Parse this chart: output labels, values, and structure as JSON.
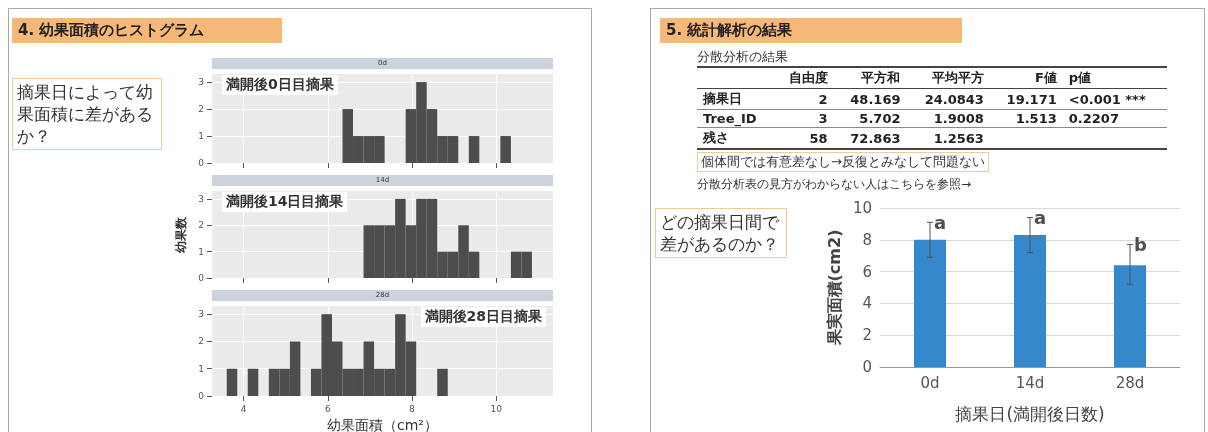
{
  "chart_data": [
    {
      "type": "histogram",
      "title": "4. 幼果面積のヒストグラム",
      "subtitle": "0d",
      "annotations": [
        "満開後0日目摘果",
        "摘果日によって幼果面積に差があるか？"
      ],
      "color": "#4d4d4d",
      "xlim": [
        3.25,
        11.35
      ],
      "xticks": [
        4,
        6,
        8,
        10
      ],
      "ylim": [
        0,
        3.3
      ],
      "yticks": [
        0,
        1,
        2,
        3
      ],
      "grid": true,
      "tick_labels": "y",
      "bins": [
        3.6,
        3.85,
        4.1,
        4.35,
        4.6,
        4.85,
        5.1,
        5.35,
        5.6,
        5.85,
        6.1,
        6.35,
        6.6,
        6.85,
        7.1,
        7.35,
        7.6,
        7.85,
        8.1,
        8.35,
        8.6,
        8.85,
        9.1,
        9.35,
        9.6,
        9.85,
        10.1,
        10.35,
        10.6,
        10.85
      ],
      "values": [
        0,
        0,
        0,
        0,
        0,
        0,
        0,
        0,
        0,
        0,
        0,
        2,
        1,
        1,
        1,
        0,
        0,
        2,
        3,
        2,
        1,
        1,
        0,
        1,
        0,
        0,
        1,
        0,
        0
      ]
    },
    {
      "type": "histogram",
      "subtitle": "14d",
      "ylabel": "幼果数",
      "annotations": [
        "満開後14日目摘果"
      ],
      "color": "#4d4d4d",
      "xlim": [
        3.25,
        11.35
      ],
      "xticks": [
        4,
        6,
        8,
        10
      ],
      "ylim": [
        0,
        3.3
      ],
      "yticks": [
        0,
        1,
        2,
        3
      ],
      "grid": true,
      "tick_labels": "y",
      "bins": [
        3.6,
        3.85,
        4.1,
        4.35,
        4.6,
        4.85,
        5.1,
        5.35,
        5.6,
        5.85,
        6.1,
        6.35,
        6.6,
        6.85,
        7.1,
        7.35,
        7.6,
        7.85,
        8.1,
        8.35,
        8.6,
        8.85,
        9.1,
        9.35,
        9.6,
        9.85,
        10.1,
        10.35,
        10.6,
        10.85
      ],
      "values": [
        0,
        0,
        0,
        0,
        0,
        0,
        0,
        0,
        0,
        0,
        0,
        0,
        0,
        2,
        2,
        2,
        3,
        2,
        3,
        3,
        1,
        1,
        2,
        1,
        0,
        0,
        0,
        1,
        1
      ]
    },
    {
      "type": "histogram",
      "subtitle": "28d",
      "xlabel": "幼果面積（cm²）",
      "annotations": [
        "満開後28日目摘果"
      ],
      "color": "#4d4d4d",
      "xlim": [
        3.25,
        11.35
      ],
      "xticks": [
        4,
        6,
        8,
        10
      ],
      "ylim": [
        0,
        3.3
      ],
      "yticks": [
        0,
        1,
        2,
        3
      ],
      "grid": true,
      "bins": [
        3.6,
        3.85,
        4.1,
        4.35,
        4.6,
        4.85,
        5.1,
        5.35,
        5.6,
        5.85,
        6.1,
        6.35,
        6.6,
        6.85,
        7.1,
        7.35,
        7.6,
        7.85,
        8.1,
        8.35,
        8.6,
        8.85,
        9.1,
        9.35,
        9.6,
        9.85,
        10.1,
        10.35,
        10.6,
        10.85
      ],
      "values": [
        1,
        0,
        1,
        0,
        1,
        1,
        2,
        0,
        1,
        3,
        2,
        1,
        1,
        2,
        1,
        1,
        3,
        2,
        0,
        0,
        1,
        0,
        0,
        0,
        0,
        0,
        0,
        0,
        0
      ]
    },
    {
      "type": "other",
      "title": "5. 統計解析の結果",
      "subtitle": "分散分析の結果",
      "categories": [
        "自由度",
        "平方和",
        "平均平方",
        "F値",
        "p値"
      ],
      "y_categories": [
        "摘果日",
        "Tree_ID",
        "残さ"
      ],
      "cell_labels": [
        [
          "2",
          "48.169",
          "24.0843",
          "19.171",
          "<0.001 ***"
        ],
        [
          "3",
          "5.702",
          "1.9008",
          "1.513",
          "0.2207"
        ],
        [
          "58",
          "72.863",
          "1.2563",
          null,
          null
        ]
      ],
      "annotations": [
        "個体間では有意差なし→反復とみなして問題ない",
        "分散分析表の見方がわからない人はこちらを参照→"
      ]
    },
    {
      "type": "bar",
      "categories": [
        "0d",
        "14d",
        "28d"
      ],
      "values": [
        8.0,
        8.3,
        6.4
      ],
      "errors": [
        1.1,
        1.1,
        [
          5.2,
          7.7
        ]
      ],
      "color": "#3588cc",
      "xlabel": "摘果日(満開後日数)",
      "ylabel": "果実面積(cm2)",
      "ylim": [
        0,
        10
      ],
      "yticks": [
        0,
        2,
        4,
        6,
        8,
        10
      ],
      "grid": "y",
      "annotations": [
        {
          "text": "a",
          "x": "0d",
          "y": 9.1
        },
        {
          "text": "a",
          "x": "14d",
          "y": 9.4
        },
        {
          "text": "b",
          "x": "28d",
          "y": 7.7
        },
        "どの摘果日間で差があるのか？"
      ]
    }
  ]
}
